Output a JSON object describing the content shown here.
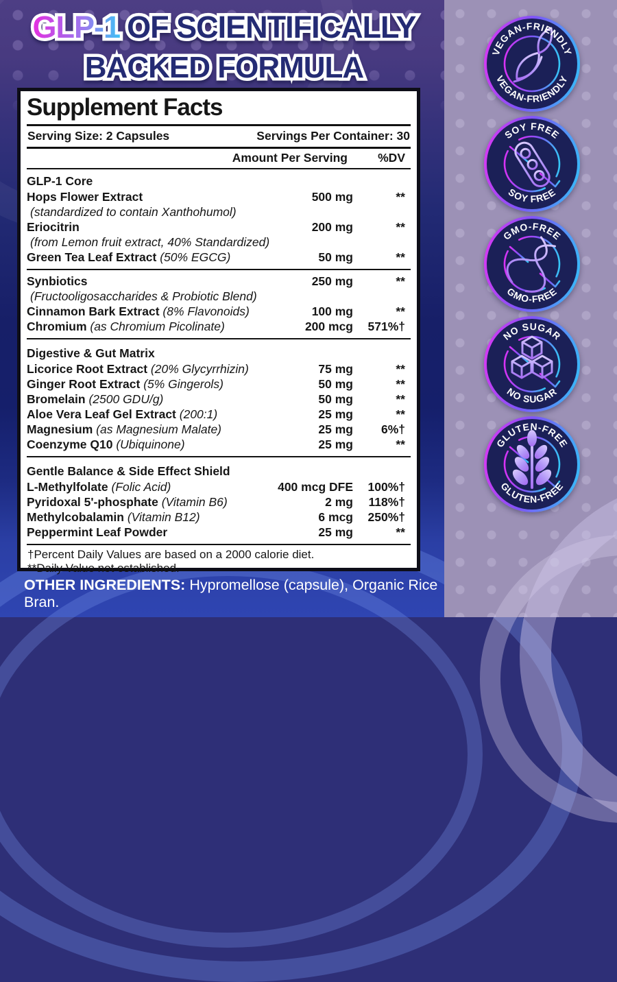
{
  "hero": {
    "highlight": "GLP-1",
    "line1_rest": "OF SCIENTIFICALLY",
    "line2": "BACKED FORMULA",
    "highlight_gradient": [
      "#e52fe0",
      "#9d7af0",
      "#3ec1f4"
    ],
    "text_color": "#242b74"
  },
  "panel": {
    "title": "Supplement Facts",
    "serving_size": "Serving Size: 2 Capsules",
    "servings_per_container": "Servings Per Container: 30",
    "col_amount": "Amount Per Serving",
    "col_dv": "%DV",
    "sections": [
      {
        "header": "GLP-1 Core",
        "rows": [
          {
            "name": "Hops Flower Extract",
            "amount": "500 mg",
            "dv": "**"
          },
          {
            "subline": "(standardized to contain Xanthohumol)"
          },
          {
            "name": "Eriocitrin",
            "amount": "200 mg",
            "dv": "**"
          },
          {
            "subline": "(from Lemon fruit extract, 40% Standardized)"
          },
          {
            "name": "Green Tea Leaf Extract",
            "name_italic": "(50% EGCG)",
            "amount": "50 mg",
            "dv": "**"
          }
        ]
      },
      {
        "header": "",
        "rows": [
          {
            "name": "Synbiotics",
            "amount": "250 mg",
            "dv": "**"
          },
          {
            "subline": "(Fructooligosaccharides & Probiotic Blend)"
          },
          {
            "name": "Cinnamon Bark Extract",
            "name_italic": "(8% Flavonoids)",
            "amount": "100 mg",
            "dv": "**"
          },
          {
            "name": "Chromium",
            "name_italic": "(as Chromium Picolinate)",
            "amount": "200 mcg",
            "dv": "571%†"
          }
        ]
      },
      {
        "header": "Digestive & Gut Matrix",
        "rows": [
          {
            "name": "Licorice Root Extract",
            "name_italic": "(20% Glycyrrhizin)",
            "amount": "75 mg",
            "dv": "**"
          },
          {
            "name": "Ginger Root Extract",
            "name_italic": "(5% Gingerols)",
            "amount": "50 mg",
            "dv": "**"
          },
          {
            "name": "Bromelain",
            "name_italic": "(2500 GDU/g)",
            "amount": "50 mg",
            "dv": "**"
          },
          {
            "name": "Aloe Vera Leaf Gel Extract",
            "name_italic": "(200:1)",
            "amount": "25 mg",
            "dv": "**"
          },
          {
            "name": "Magnesium",
            "name_italic": "(as Magnesium Malate)",
            "amount": "25 mg",
            "dv": "6%†"
          },
          {
            "name": "Coenzyme Q10",
            "name_italic": "(Ubiquinone)",
            "amount": "25 mg",
            "dv": "**"
          }
        ]
      },
      {
        "header": "Gentle Balance & Side Effect Shield",
        "rows": [
          {
            "name": "L-Methylfolate",
            "name_italic": "(Folic Acid)",
            "amount": "400 mcg DFE",
            "dv": "100%†"
          },
          {
            "name": "Pyridoxal 5'-phosphate",
            "name_italic": "(Vitamin B6)",
            "amount": "2 mg",
            "dv": "118%†"
          },
          {
            "name": "Methylcobalamin",
            "name_italic": "(Vitamin B12)",
            "amount": "6 mcg",
            "dv": "250%†"
          },
          {
            "name": "Peppermint Leaf Powder",
            "amount": "25 mg",
            "dv": "**"
          }
        ]
      }
    ],
    "footnotes": [
      "†Percent Daily Values are based on a 2000 calorie diet.",
      "**Daily Value not established."
    ]
  },
  "other_ingredients": {
    "label": "OTHER INGREDIENTS:",
    "value": "Hypromellose (capsule), Organic Rice Bran."
  },
  "badges": [
    {
      "top": "VEGAN-FRIENDLY",
      "bottom": "VEGAN-FRIENDLY",
      "icon": "leaf-icon",
      "slashed": false
    },
    {
      "top": "SOY FREE",
      "bottom": "SOY FREE",
      "icon": "soybean-icon",
      "slashed": true
    },
    {
      "top": "GMO-FREE",
      "bottom": "GMO-FREE",
      "icon": "dna-icon",
      "slashed": true
    },
    {
      "top": "NO SUGAR",
      "bottom": "NO SUGAR",
      "icon": "sugar-cubes-icon",
      "slashed": true
    },
    {
      "top": "GLUTEN-FREE",
      "bottom": "GLUTEN-FREE",
      "icon": "wheat-icon",
      "slashed": true
    }
  ],
  "colors": {
    "badge_ring": [
      "#e135f2",
      "#7d55f7",
      "#30c5f8"
    ],
    "badge_background": "#1b2057",
    "panel_background": "#ffffff",
    "bottom_band_blue": "#2b3fa5",
    "left_background_purple": "#4d3e84",
    "right_background_mauve": "#9c91b6"
  }
}
